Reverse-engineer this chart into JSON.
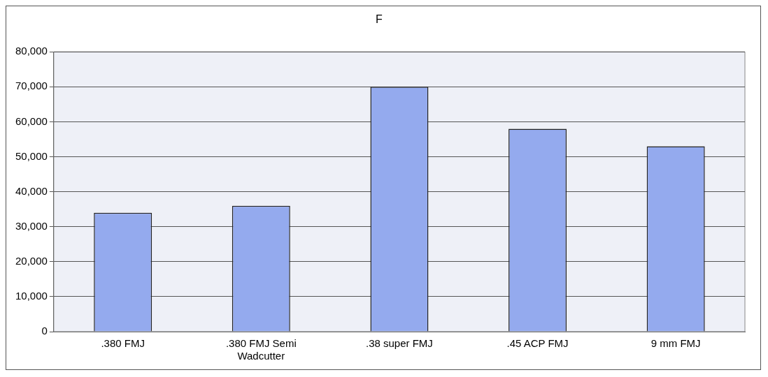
{
  "chart_data": {
    "type": "bar",
    "title": "F",
    "categories": [
      ".380 FMJ",
      ".380 FMJ Semi Wadcutter",
      ".38 super FMJ",
      ".45 ACP FMJ",
      "9 mm FMJ"
    ],
    "values": [
      34000,
      36000,
      70000,
      58000,
      53000
    ],
    "color": "#94aaee",
    "ylim": [
      0,
      80000
    ],
    "yticks": [
      0,
      {
        "value": 10000,
        "label": "10,000"
      },
      {
        "value": 20000,
        "label": "20,000"
      },
      {
        "value": 30000,
        "label": "30,000"
      },
      {
        "value": 40000,
        "label": "40,000"
      },
      {
        "value": 50000,
        "label": "50,000"
      },
      {
        "value": 60000,
        "label": "60,000"
      },
      {
        "value": 70000,
        "label": "70,000"
      },
      {
        "value": 80000,
        "label": "80,000"
      }
    ],
    "grid": "y"
  }
}
